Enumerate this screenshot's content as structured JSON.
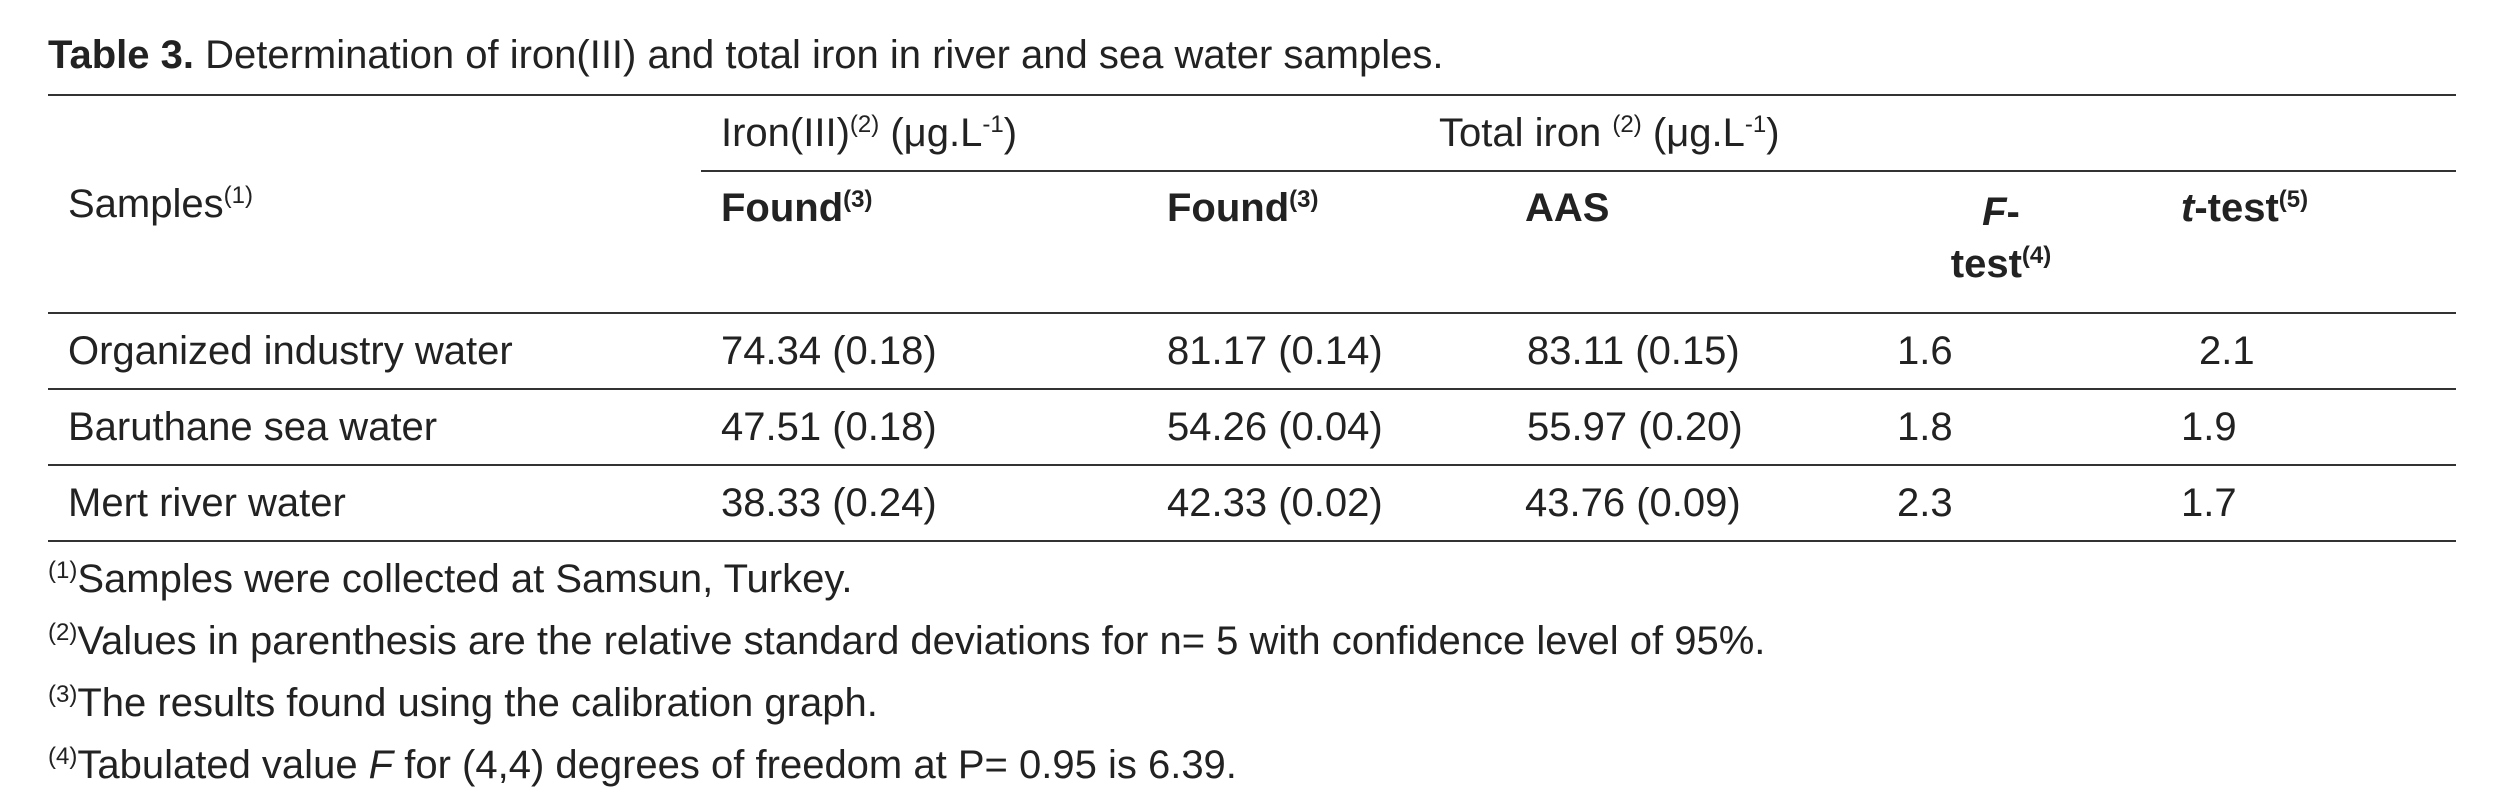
{
  "caption": {
    "label": "Table 3.",
    "text": " Determination of iron(III) and total iron in river and sea water samples."
  },
  "header": {
    "samples_label": "Samples",
    "samples_mark": "(1)",
    "iron3_group": "Iron(III)",
    "iron3_mark": "(2)",
    "iron3_unit": " (μg.L",
    "iron3_unit_exp": "-1",
    "iron3_unit_close": ")",
    "total_group": "Total iron ",
    "total_mark": "(2)",
    "total_unit": " (μg.L",
    "total_unit_exp": "-1",
    "total_unit_close": ")",
    "col_found1": "Found",
    "col_found1_mark": "(3)",
    "col_found2": "Found",
    "col_found2_mark": "(3)",
    "col_aas": "AAS",
    "col_ftest_italic": "F",
    "col_ftest_rest": "-",
    "col_ftest_line2": "test",
    "col_ftest_mark": "(4)",
    "col_ttest_italic": "t",
    "col_ttest_rest": "-test",
    "col_ttest_mark": "(5)"
  },
  "rows": [
    {
      "sample": "Organized industry water",
      "iron3_found": "74.34 (0.18)",
      "total_found": "81.17 (0.14)",
      "aas": "83.11 (0.15)",
      "f_test": "1.6",
      "t_test": "2.1"
    },
    {
      "sample": "Baruthane sea water",
      "iron3_found": "47.51 (0.18)",
      "total_found": "54.26 (0.04)",
      "aas": "55.97 (0.20)",
      "f_test": "1.8",
      "t_test": "1.9"
    },
    {
      "sample": "Mert river water",
      "iron3_found": "38.33 (0.24)",
      "total_found": "42.33 (0.02)",
      "aas": "43.76 (0.09)",
      "f_test": "2.3",
      "t_test": "1.7"
    }
  ],
  "footnotes": {
    "f1_mark": "(1)",
    "f1_text": "Samples were collected at Samsun, Turkey.",
    "f2_mark": "(2)",
    "f2_text": "Values in parenthesis are the relative standard deviations for n= 5 with confidence level of 95%.",
    "f3_mark": "(3)",
    "f3_text": "The results found using the calibration graph.",
    "f4_mark": "(4)",
    "f4_text_a": "Tabulated value ",
    "f4_italic": "F",
    "f4_text_b": " for (4,4) degrees of freedom at P= 0.95 is 6.39."
  }
}
